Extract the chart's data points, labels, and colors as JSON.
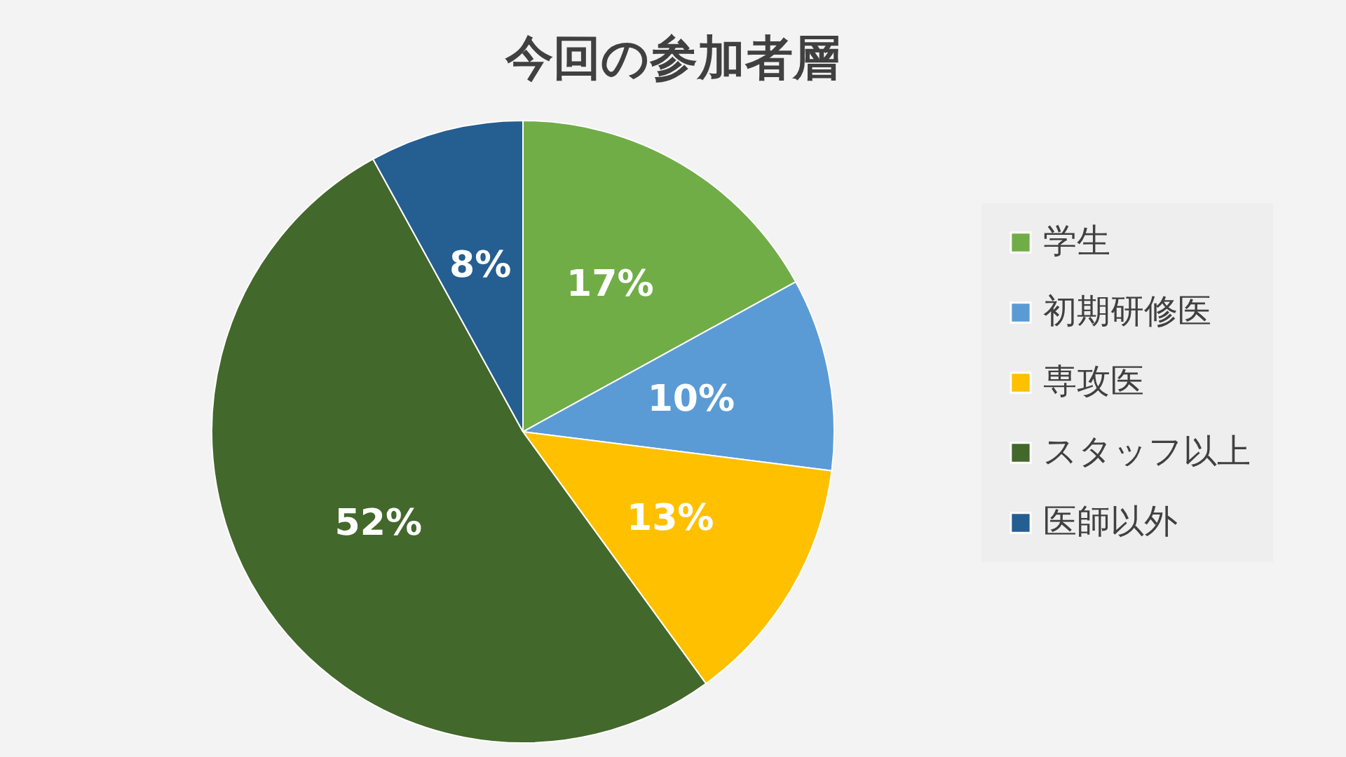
{
  "chart_data": {
    "type": "pie",
    "title": "今回の参加者層",
    "categories": [
      "学生",
      "初期研修医",
      "専攻医",
      "スタッフ以上",
      "医師以外"
    ],
    "values": [
      17,
      10,
      13,
      52,
      8
    ],
    "value_labels": [
      "17%",
      "10%",
      "13%",
      "52%",
      "8%"
    ],
    "colors": [
      "#70ad47",
      "#5b9bd5",
      "#ffc000",
      "#43682b",
      "#255e91"
    ],
    "legend": "right"
  }
}
